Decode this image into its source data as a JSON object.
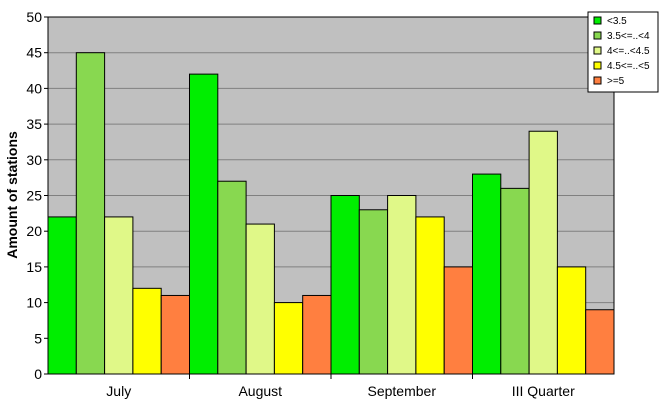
{
  "chart_data": {
    "type": "bar",
    "title": "",
    "xlabel": "",
    "ylabel": "Amount of stations",
    "ylim": [
      0,
      50
    ],
    "yticks": [
      0,
      5,
      10,
      15,
      20,
      25,
      30,
      35,
      40,
      45,
      50
    ],
    "grid": true,
    "plot_background": "#c0c0c0",
    "legend_position": "top-right",
    "categories": [
      "July",
      "August",
      "September",
      "III Quarter"
    ],
    "series": [
      {
        "name": "<3.5",
        "color": "#00ee00",
        "values": [
          22,
          42,
          25,
          28
        ]
      },
      {
        "name": "3.5<=..<4",
        "color": "#88d850",
        "values": [
          45,
          27,
          23,
          26
        ]
      },
      {
        "name": "4<=..<4.5",
        "color": "#e0f888",
        "values": [
          22,
          21,
          25,
          34
        ]
      },
      {
        "name": "4.5<=..<5",
        "color": "#ffff00",
        "values": [
          12,
          10,
          22,
          15
        ]
      },
      {
        "name": ">=5",
        "color": "#ff7f40",
        "values": [
          11,
          11,
          15,
          9
        ]
      }
    ]
  }
}
